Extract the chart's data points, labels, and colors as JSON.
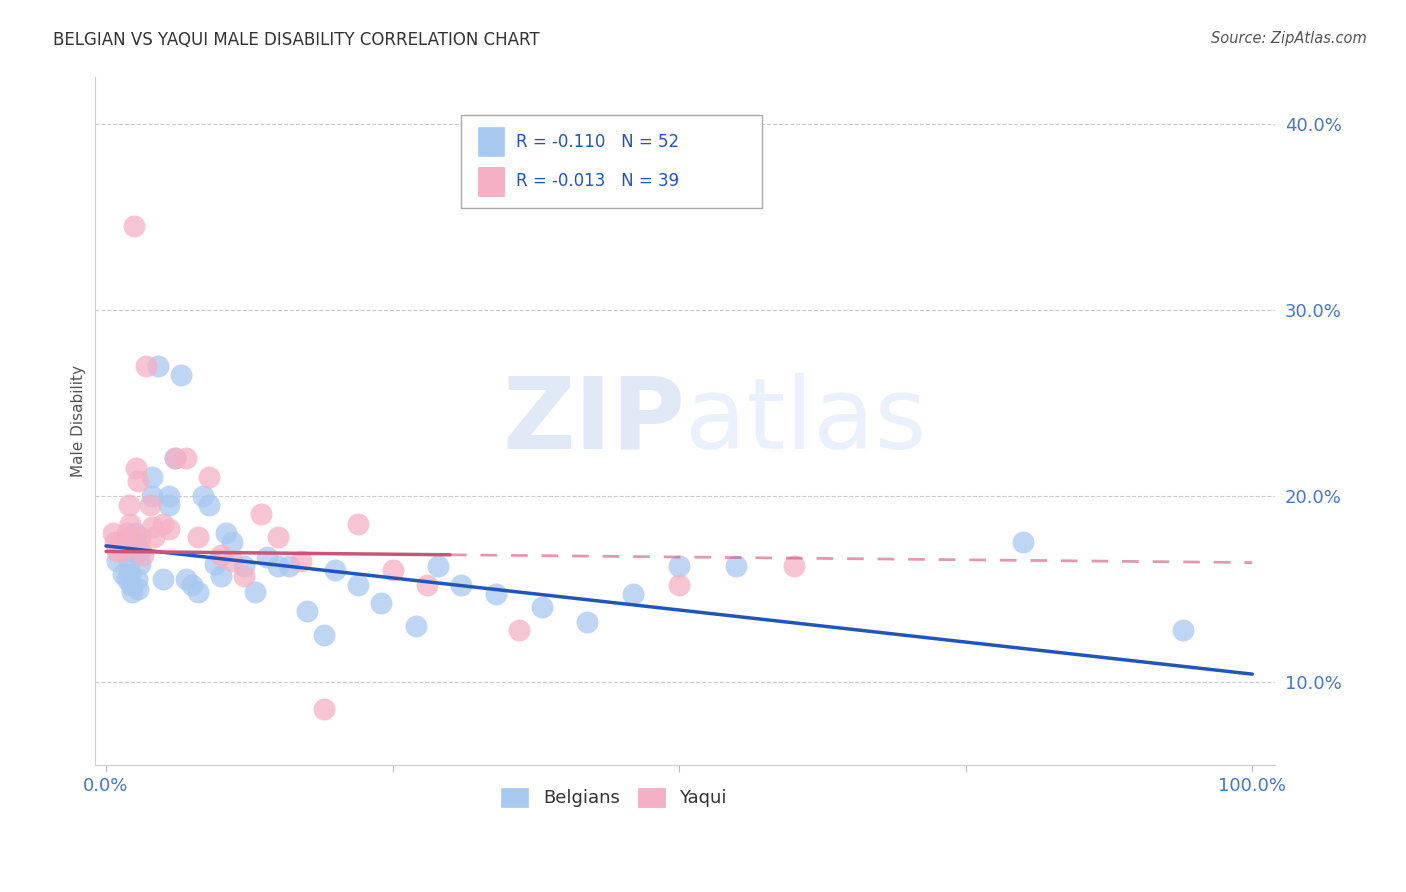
{
  "title": "BELGIAN VS YAQUI MALE DISABILITY CORRELATION CHART",
  "source": "Source: ZipAtlas.com",
  "ylabel": "Male Disability",
  "xlim": [
    -0.01,
    1.02
  ],
  "ylim": [
    0.055,
    0.425
  ],
  "yticks": [
    0.1,
    0.2,
    0.3,
    0.4
  ],
  "ytick_labels": [
    "10.0%",
    "20.0%",
    "30.0%",
    "40.0%"
  ],
  "xticks": [
    0.0,
    0.25,
    0.5,
    0.75,
    1.0
  ],
  "xtick_labels": [
    "0.0%",
    "",
    "",
    "",
    "100.0%"
  ],
  "belgian_color": "#A8C8F0",
  "yaqui_color": "#F5B0C5",
  "belgian_line_color": "#2255BB",
  "yaqui_line_color": "#CC5577",
  "r_belgian": -0.11,
  "n_belgian": 52,
  "r_yaqui": -0.013,
  "n_yaqui": 39,
  "watermark_zip": "ZIP",
  "watermark_atlas": "atlas",
  "belgian_x": [
    0.01,
    0.015,
    0.018,
    0.02,
    0.02,
    0.021,
    0.022,
    0.023,
    0.025,
    0.025,
    0.027,
    0.028,
    0.03,
    0.03,
    0.04,
    0.04,
    0.045,
    0.05,
    0.055,
    0.055,
    0.06,
    0.065,
    0.07,
    0.075,
    0.08,
    0.085,
    0.09,
    0.095,
    0.1,
    0.105,
    0.11,
    0.12,
    0.13,
    0.14,
    0.15,
    0.16,
    0.175,
    0.19,
    0.2,
    0.22,
    0.24,
    0.27,
    0.29,
    0.31,
    0.34,
    0.38,
    0.42,
    0.46,
    0.5,
    0.55,
    0.8,
    0.94
  ],
  "belgian_y": [
    0.165,
    0.158,
    0.155,
    0.17,
    0.163,
    0.158,
    0.152,
    0.148,
    0.18,
    0.175,
    0.155,
    0.15,
    0.17,
    0.163,
    0.21,
    0.2,
    0.27,
    0.155,
    0.2,
    0.195,
    0.22,
    0.265,
    0.155,
    0.152,
    0.148,
    0.2,
    0.195,
    0.163,
    0.157,
    0.18,
    0.175,
    0.162,
    0.148,
    0.167,
    0.162,
    0.162,
    0.138,
    0.125,
    0.16,
    0.152,
    0.142,
    0.13,
    0.162,
    0.152,
    0.147,
    0.14,
    0.132,
    0.147,
    0.162,
    0.162,
    0.175,
    0.128
  ],
  "yaqui_x": [
    0.006,
    0.008,
    0.01,
    0.012,
    0.014,
    0.016,
    0.018,
    0.02,
    0.021,
    0.022,
    0.023,
    0.024,
    0.026,
    0.028,
    0.03,
    0.032,
    0.035,
    0.038,
    0.04,
    0.042,
    0.05,
    0.055,
    0.06,
    0.07,
    0.08,
    0.09,
    0.1,
    0.11,
    0.12,
    0.135,
    0.15,
    0.17,
    0.19,
    0.22,
    0.25,
    0.28,
    0.36,
    0.5,
    0.6
  ],
  "yaqui_y": [
    0.18,
    0.175,
    0.17,
    0.175,
    0.17,
    0.175,
    0.18,
    0.195,
    0.185,
    0.178,
    0.173,
    0.345,
    0.215,
    0.208,
    0.178,
    0.168,
    0.27,
    0.195,
    0.183,
    0.178,
    0.185,
    0.182,
    0.22,
    0.22,
    0.178,
    0.21,
    0.168,
    0.165,
    0.157,
    0.19,
    0.178,
    0.165,
    0.085,
    0.185,
    0.16,
    0.152,
    0.128,
    0.152,
    0.162
  ],
  "blue_line_start_x": 0.0,
  "blue_line_end_x": 1.0,
  "blue_line_start_y": 0.173,
  "blue_line_end_y": 0.104,
  "pink_line_start_x": 0.0,
  "pink_line_end_x": 1.0,
  "pink_line_solid_end_x": 0.3,
  "pink_line_start_y": 0.17,
  "pink_line_end_y": 0.164
}
